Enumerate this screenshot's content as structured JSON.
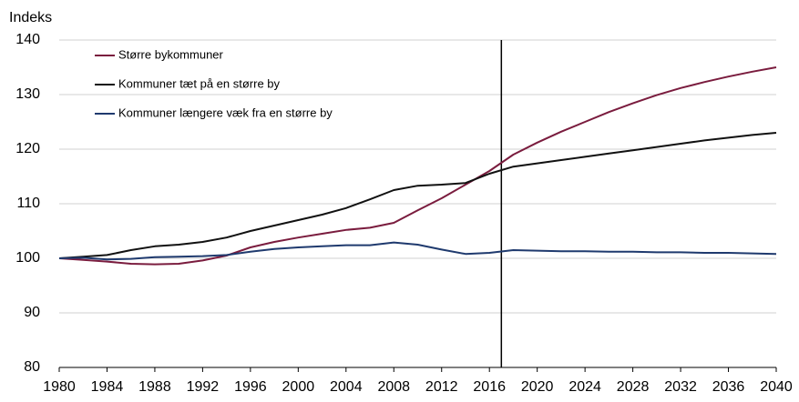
{
  "chart_data": {
    "type": "line",
    "y_label": "Indeks",
    "x": [
      1980,
      1982,
      1984,
      1986,
      1988,
      1990,
      1992,
      1994,
      1996,
      1998,
      2000,
      2002,
      2004,
      2006,
      2008,
      2010,
      2012,
      2014,
      2016,
      2018,
      2020,
      2022,
      2024,
      2026,
      2028,
      2030,
      2032,
      2034,
      2036,
      2038,
      2040
    ],
    "series": [
      {
        "name": "Større bykommuner",
        "color": "#7a1c3e",
        "values": [
          100,
          99.7,
          99.4,
          99.0,
          98.9,
          99.0,
          99.6,
          100.5,
          102.0,
          103.0,
          103.8,
          104.5,
          105.2,
          105.6,
          106.5,
          108.8,
          111.0,
          113.5,
          116.0,
          119.0,
          121.2,
          123.2,
          125.0,
          126.8,
          128.4,
          129.9,
          131.2,
          132.3,
          133.3,
          134.2,
          135.0
        ]
      },
      {
        "name": "Kommuner tæt på en større by",
        "color": "#111111",
        "values": [
          100,
          100.3,
          100.6,
          101.5,
          102.2,
          102.5,
          103.0,
          103.8,
          105.0,
          106.0,
          107.0,
          108.0,
          109.2,
          110.8,
          112.5,
          113.3,
          113.5,
          113.8,
          115.5,
          116.8,
          117.4,
          118.0,
          118.6,
          119.2,
          119.8,
          120.4,
          121.0,
          121.6,
          122.1,
          122.6,
          123.0
        ]
      },
      {
        "name": "Kommuner længere væk fra en større by",
        "color": "#1f3a6e",
        "values": [
          100,
          100.1,
          99.8,
          99.9,
          100.2,
          100.3,
          100.4,
          100.6,
          101.2,
          101.7,
          102.0,
          102.2,
          102.4,
          102.4,
          102.9,
          102.5,
          101.6,
          100.8,
          101.0,
          101.5,
          101.4,
          101.3,
          101.3,
          101.2,
          101.2,
          101.1,
          101.1,
          101.0,
          101.0,
          100.9,
          100.8
        ]
      }
    ],
    "vline": 2017,
    "xlim": [
      1980,
      2040
    ],
    "xticks": [
      1980,
      1984,
      1988,
      1992,
      1996,
      2000,
      2004,
      2008,
      2012,
      2016,
      2020,
      2024,
      2028,
      2032,
      2036,
      2040
    ],
    "ylim": [
      80,
      140
    ],
    "yticks": [
      80,
      90,
      100,
      110,
      120,
      130,
      140
    ],
    "grid": true,
    "legend": "top-left"
  }
}
